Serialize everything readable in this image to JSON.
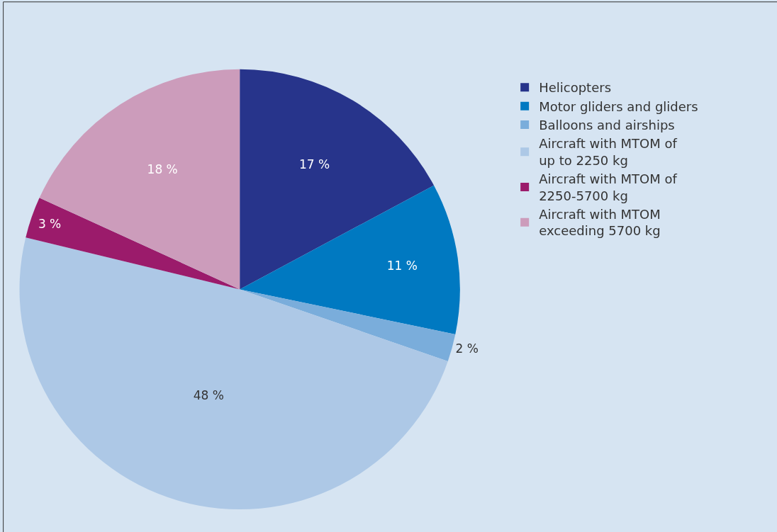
{
  "chart_data": {
    "type": "pie",
    "categories": [
      "Helicopters",
      "Motor gliders and gliders",
      "Balloons and airships",
      "Aircraft with MTOM of\nup to 2250 kg",
      "Aircraft with MTOM of\n2250-5700 kg",
      "Aircraft with MTOM\nexceeding 5700 kg"
    ],
    "values": [
      17,
      11,
      2,
      48,
      3,
      18
    ],
    "value_labels": [
      "17 %",
      "11 %",
      "2 %",
      "48 %",
      "3 %",
      "18 %"
    ],
    "colors": [
      "#27348b",
      "#0079c1",
      "#7aaddb",
      "#adc8e6",
      "#9b1b6b",
      "#cc9cbb"
    ],
    "legend": "right"
  }
}
